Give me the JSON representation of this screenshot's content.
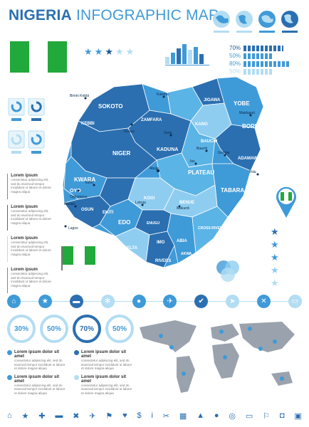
{
  "header": {
    "title_bold": "NIGERIA",
    "title_light": "INFOGRAPHIC MAP"
  },
  "percent_rows": [
    "70%",
    "50%",
    "80%",
    "50%"
  ],
  "percent_levels": [
    0.7,
    0.5,
    0.8,
    0.5
  ],
  "map_labels": {
    "sokoto": "SOKOTO",
    "katsina": "Katsina",
    "jigawa": "JIGAWA",
    "yobe": "YOBE",
    "borno": "BORNO",
    "kano": "KANO",
    "kebbi": "KEBBI",
    "zamfara": "ZAMFARA",
    "kaduna": "KADUNA",
    "bauchi": "BAUCHI",
    "gombe": "Gombe",
    "adamawa": "ADAMAWA",
    "niger": "NIGER",
    "plateau": "PLATEAU",
    "taraba": "TABARA",
    "kwara": "KWARA",
    "oyo": "OYO",
    "osun": "OSUN",
    "ekiti": "EKITI",
    "kogi": "KOGI",
    "edo": "EDO",
    "delta": "DELTA",
    "rivers": "RIVERS",
    "enugu": "ENUGU",
    "benue": "BENUE",
    "cross_river": "CROSS RIVER",
    "abia": "ABIA",
    "imo": "IMO",
    "akwa": "AKWA",
    "lagos": "Lagos",
    "ogbomoso": "Ogbomoso",
    "abuja": "Abuja",
    "jos": "Jos",
    "makurdi": "Makurdi",
    "yola": "Yola",
    "maiduguri": "Maiduguri",
    "lokoja": "Lokoja",
    "bauchi_city": "Bauchi",
    "ibadan": "Ibadan",
    "ilorin": "Ilorin",
    "zaria": "Zaria",
    "gusau": "Gusau",
    "birnin_kebbi": "Birnin Kebbi"
  },
  "side_text": [
    {
      "head": "Lorem ipsum",
      "body": "consectetur adipiscing elit, sed do eiusmod tempor incididunt ut labore et dolore magna aliqua"
    },
    {
      "head": "Lorem ipsum",
      "body": "consectetur adipiscing elit, sed do eiusmod tempor incididunt ut labore et dolore magna aliqua"
    },
    {
      "head": "Lorem ipsum",
      "body": "consectetur adipiscing elit, sed do eiusmod tempor incididunt ut labore et dolore magna aliqua"
    },
    {
      "head": "Lorem ipsum",
      "body": "consectetur adipiscing elit, sed do eiusmod tempor incididunt ut labore et dolore magna aliqua"
    }
  ],
  "rings": [
    "30%",
    "50%",
    "70%",
    "50%"
  ],
  "ring_levels": [
    0.3,
    0.5,
    0.7,
    0.5
  ],
  "bottom_text": [
    {
      "head": "Lorem ipsum dolor sit amet",
      "body": "consectetur adipiscing elit, sed do eiusmod tempor incididunt ut labore et dolore magna aliqua"
    },
    {
      "head": "Lorem ipsum dolor sit amet",
      "body": "consectetur adipiscing elit, sed do eiusmod tempor incididunt ut labore et dolore magna aliqua"
    },
    {
      "head": "Lorem ipsum dolor sit amet",
      "body": "consectetur adipiscing elit, sed do eiusmod tempor incididunt ut labore et dolore magna aliqua"
    },
    {
      "head": "Lorem ipsum dolor sit amet",
      "body": "consectetur adipiscing elit, sed do eiusmod tempor incididunt ut labore et dolore magna aliqua"
    }
  ],
  "icons_row": [
    "home-icon",
    "star-icon",
    "car-icon",
    "flower-icon",
    "pin-icon",
    "plane-icon",
    "check-icon",
    "send-icon",
    "cutlery-icon",
    "bed-icon"
  ],
  "colors": {
    "accent": "#3f9ad8",
    "dark": "#2b6fb0",
    "light": "#b3ddf3",
    "flag_green": "#22a93b"
  }
}
